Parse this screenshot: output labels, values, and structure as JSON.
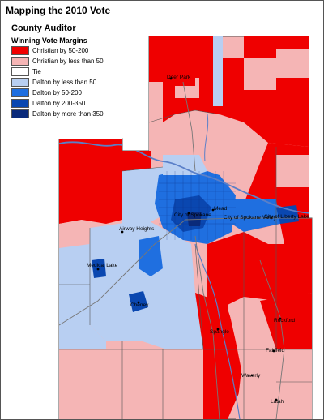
{
  "title": "Mapping the 2010 Vote",
  "race": "County Auditor",
  "legend": {
    "header": "Winning Vote Margins",
    "items": [
      {
        "label": "Christian by 50-200",
        "color": "#ef0000"
      },
      {
        "label": "Christian by less than 50",
        "color": "#f5b5b5"
      },
      {
        "label": "Tie",
        "color": "#ffffff"
      },
      {
        "label": "Dalton by less than 50",
        "color": "#b8cff2"
      },
      {
        "label": "Dalton by 50-200",
        "color": "#1f6fe0"
      },
      {
        "label": "Dalton by 200-350",
        "color": "#0a47b0"
      },
      {
        "label": "Dalton by more than 350",
        "color": "#0a2a7a"
      }
    ]
  },
  "places": {
    "deer_park": "Deer Park",
    "city_of_spokane": "City of Spokane",
    "mead": "Mead",
    "city_of_spokane_valley": "City of Spokane Valley",
    "city_of_liberty_lake": "City of Liberty Lake",
    "airway_heights": "Airway Heights",
    "medical_lake": "Medical Lake",
    "cheney": "Cheney",
    "spangle": "Spangle",
    "rockford": "Rockford",
    "fairfield": "Fairfield",
    "waverly": "Waverly",
    "latah": "Latah"
  }
}
